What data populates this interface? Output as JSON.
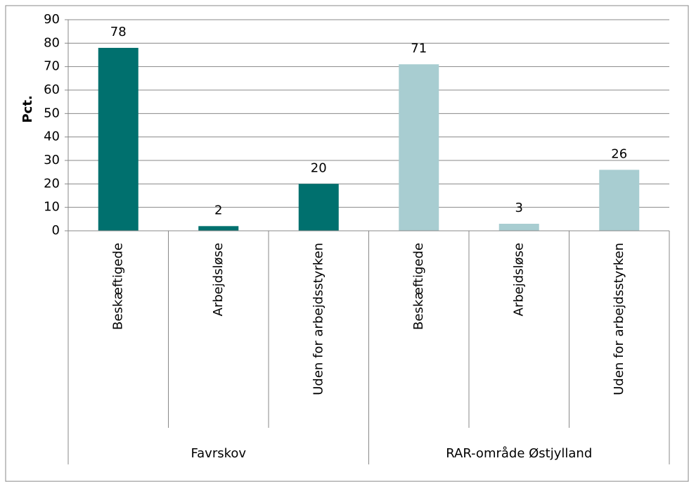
{
  "chart_data": {
    "type": "bar",
    "y_label": "Pct.",
    "groups": [
      {
        "name": "Favrskov",
        "color": "#00706e",
        "categories": [
          "Beskæftigede",
          "Arbejdsløse",
          "Uden for arbejdsstyrken"
        ],
        "values": [
          78,
          2,
          20
        ]
      },
      {
        "name": "RAR-område Østjylland",
        "color": "#a8cdd1",
        "categories": [
          "Beskæftigede",
          "Arbejdsløse",
          "Uden for arbejdsstyrken"
        ],
        "values": [
          71,
          3,
          26
        ]
      }
    ],
    "ylim": [
      0,
      90
    ],
    "yticks": [
      0,
      10,
      20,
      30,
      40,
      50,
      60,
      70,
      80,
      90
    ],
    "grid": true
  }
}
